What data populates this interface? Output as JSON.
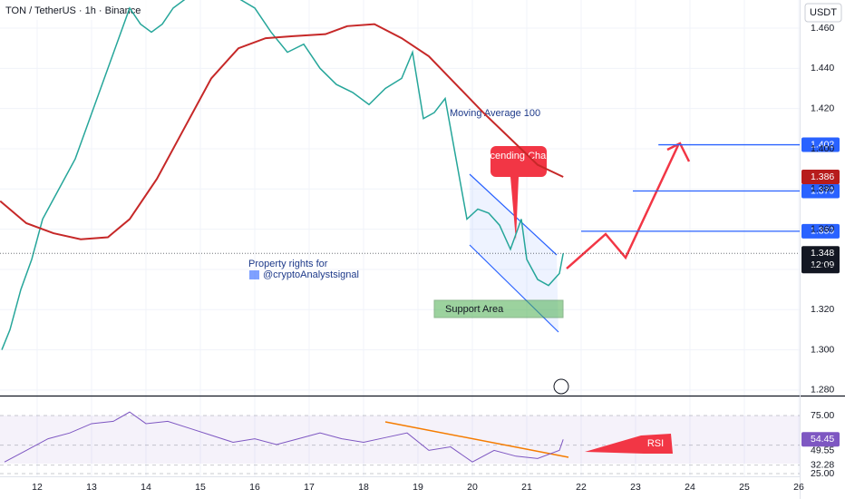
{
  "chart_data": {
    "type": "line",
    "title": "TON / TetherUS · 1h · Binance",
    "currency": "USDT",
    "xlim": [
      11.3167,
      26.0167
    ],
    "xticks": [
      12,
      13,
      14,
      15,
      16,
      17,
      18,
      19,
      20,
      21,
      22,
      23,
      24,
      25,
      26
    ],
    "ylim": [
      1.2768,
      1.474
    ],
    "yticks": [
      {
        "value": 1.28,
        "label": "1.280"
      },
      {
        "value": 1.3,
        "label": "1.300"
      },
      {
        "value": 1.32,
        "label": "1.320"
      },
      {
        "value": 1.34,
        "label": "1.340"
      },
      {
        "value": 1.36,
        "label": "1.360"
      },
      {
        "value": 1.38,
        "label": "1.380"
      },
      {
        "value": 1.4,
        "label": "1.400"
      },
      {
        "value": 1.42,
        "label": "1.420"
      },
      {
        "value": 1.44,
        "label": "1.440"
      },
      {
        "value": 1.46,
        "label": "1.460"
      }
    ],
    "series": [
      {
        "name": "TON / TetherUS",
        "color": "#26a69a",
        "x": [
          11.35,
          11.5,
          11.7,
          11.9,
          12.1,
          12.3,
          12.5,
          12.7,
          12.9,
          13.1,
          13.3,
          13.5,
          13.7,
          13.9,
          14.1,
          14.3,
          14.5,
          15.0,
          15.5,
          16.0,
          16.3,
          16.6,
          16.9,
          17.2,
          17.5,
          17.8,
          18.1,
          18.4,
          18.7,
          18.9,
          19.1,
          19.3,
          19.5,
          19.7,
          19.9,
          20.1,
          20.3,
          20.5,
          20.7,
          20.9,
          21.0,
          21.2,
          21.4,
          21.6,
          21.67
        ],
        "values": [
          1.3,
          1.31,
          1.33,
          1.345,
          1.365,
          1.375,
          1.385,
          1.395,
          1.41,
          1.425,
          1.44,
          1.455,
          1.47,
          1.462,
          1.458,
          1.462,
          1.47,
          1.48,
          1.478,
          1.47,
          1.458,
          1.448,
          1.452,
          1.44,
          1.432,
          1.428,
          1.422,
          1.43,
          1.435,
          1.448,
          1.415,
          1.418,
          1.425,
          1.395,
          1.365,
          1.37,
          1.368,
          1.362,
          1.35,
          1.365,
          1.345,
          1.335,
          1.332,
          1.338,
          1.348
        ]
      },
      {
        "name": "Moving Average 100",
        "color": "#c62828",
        "x": [
          11.32,
          11.8,
          12.3,
          12.8,
          13.3,
          13.7,
          14.2,
          14.7,
          15.2,
          15.7,
          16.2,
          16.7,
          17.3,
          17.7,
          18.2,
          18.7,
          19.2,
          19.7,
          20.2,
          20.7,
          21.2,
          21.67
        ],
        "values": [
          1.374,
          1.363,
          1.358,
          1.355,
          1.356,
          1.365,
          1.385,
          1.41,
          1.435,
          1.45,
          1.455,
          1.456,
          1.457,
          1.461,
          1.462,
          1.455,
          1.446,
          1.432,
          1.418,
          1.405,
          1.392,
          1.386
        ]
      }
    ],
    "levels": [
      {
        "value": 1.402,
        "label": "1.402",
        "from": 23.42
      },
      {
        "value": 1.379,
        "label": "1.379",
        "from": 22.95
      },
      {
        "value": 1.359,
        "label": "1.359",
        "from": 22.0
      }
    ],
    "ma_value": {
      "value": 1.386,
      "label": "1.386"
    },
    "last_price": {
      "value": 1.348,
      "label": "1.348",
      "countdown": "12:09"
    },
    "annotations": {
      "ma": "Moving Average 100",
      "channel": "Descending Channel",
      "support": "Support Area",
      "rights": "Property rights for",
      "author": "@cryptoAnalystsignal",
      "rsi": "RSI"
    },
    "rsi": {
      "name": "RSI",
      "color": "#7e57c2",
      "ylim": [
        22.66,
        91.4
      ],
      "yticks": [
        {
          "value": 75,
          "label": "75.00"
        },
        {
          "value": 49.55,
          "label": "49.55"
        },
        {
          "value": 32.28,
          "label": "32.28"
        },
        {
          "value": 25,
          "label": "25.00"
        }
      ],
      "current": {
        "value": 54.45,
        "label": "54.45"
      },
      "x": [
        11.4,
        11.8,
        12.2,
        12.6,
        13.0,
        13.4,
        13.7,
        14.0,
        14.4,
        14.8,
        15.2,
        15.6,
        16.0,
        16.4,
        16.8,
        17.2,
        17.6,
        18.0,
        18.4,
        18.8,
        19.2,
        19.6,
        20.0,
        20.4,
        20.8,
        21.2,
        21.6,
        21.67
      ],
      "values": [
        35,
        45,
        55,
        60,
        68,
        70,
        78,
        68,
        70,
        64,
        58,
        52,
        55,
        50,
        55,
        60,
        55,
        52,
        56,
        60,
        45,
        48,
        35,
        45,
        40,
        38,
        45,
        54.45
      ]
    }
  }
}
